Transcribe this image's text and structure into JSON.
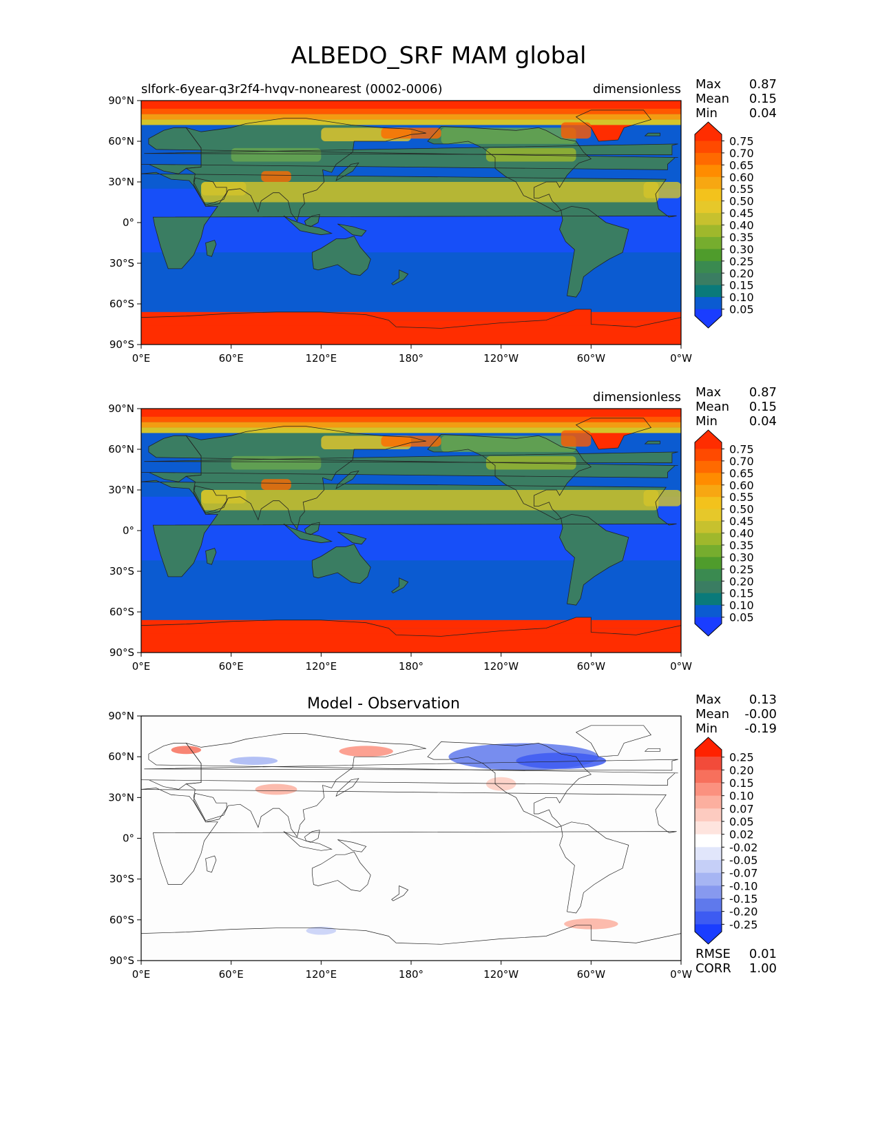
{
  "figure_title": "ALBEDO_SRF MAM global",
  "colors": {
    "land_low": "#3a7d62",
    "land_mid": "#6aa84f",
    "land_high": "#d4c42a",
    "ocean": "#0b5bd1",
    "ocean_light": "#1a4dff",
    "ice": "#ff2d00",
    "diff_zero": "#fdfdfd"
  },
  "chart_data": [
    {
      "type": "heatmap",
      "id": "panel1",
      "title_left": "slfork-6year-q3r2f4-hvqv-nonearest (0002-0006)",
      "title_center": "",
      "units": "dimensionless",
      "stats": [
        {
          "label": "Max",
          "value": "0.87"
        },
        {
          "label": "Mean",
          "value": "0.15"
        },
        {
          "label": "Min",
          "value": "0.04"
        }
      ],
      "extra_stats": [],
      "xticks": [
        "0°E",
        "60°E",
        "120°E",
        "180°",
        "120°W",
        "60°W",
        "0°W"
      ],
      "yticks": [
        "90°N",
        "60°N",
        "30°N",
        "0°",
        "30°S",
        "60°S",
        "90°S"
      ],
      "xlim": [
        0,
        360
      ],
      "ylim": [
        -90,
        90
      ],
      "colorbar": {
        "labels": [
          "0.75",
          "0.70",
          "0.65",
          "0.60",
          "0.55",
          "0.50",
          "0.45",
          "0.40",
          "0.35",
          "0.30",
          "0.25",
          "0.20",
          "0.15",
          "0.10",
          "0.05"
        ],
        "colors": [
          "#ff2d00",
          "#ff4a00",
          "#ff6a00",
          "#ff8c00",
          "#f7a712",
          "#f3c21c",
          "#e6c82a",
          "#c7c12e",
          "#9fb82c",
          "#76ad2e",
          "#4f9c2c",
          "#3a8a50",
          "#3a7d62",
          "#0a7a7a",
          "#0b5bd1",
          "#1a3dff"
        ]
      }
    },
    {
      "type": "heatmap",
      "id": "panel2",
      "title_left": "",
      "title_center": "",
      "units": "dimensionless",
      "stats": [
        {
          "label": "Max",
          "value": "0.87"
        },
        {
          "label": "Mean",
          "value": "0.15"
        },
        {
          "label": "Min",
          "value": "0.04"
        }
      ],
      "extra_stats": [],
      "xticks": [
        "0°E",
        "60°E",
        "120°E",
        "180°",
        "120°W",
        "60°W",
        "0°W"
      ],
      "yticks": [
        "90°N",
        "60°N",
        "30°N",
        "0°",
        "30°S",
        "60°S",
        "90°S"
      ],
      "xlim": [
        0,
        360
      ],
      "ylim": [
        -90,
        90
      ],
      "colorbar": {
        "labels": [
          "0.75",
          "0.70",
          "0.65",
          "0.60",
          "0.55",
          "0.50",
          "0.45",
          "0.40",
          "0.35",
          "0.30",
          "0.25",
          "0.20",
          "0.15",
          "0.10",
          "0.05"
        ],
        "colors": [
          "#ff2d00",
          "#ff4a00",
          "#ff6a00",
          "#ff8c00",
          "#f7a712",
          "#f3c21c",
          "#e6c82a",
          "#c7c12e",
          "#9fb82c",
          "#76ad2e",
          "#4f9c2c",
          "#3a8a50",
          "#3a7d62",
          "#0a7a7a",
          "#0b5bd1",
          "#1a3dff"
        ]
      }
    },
    {
      "type": "heatmap",
      "id": "panel3",
      "title_left": "",
      "title_center": "Model - Observation",
      "units": "",
      "stats": [
        {
          "label": "Max",
          "value": "0.13"
        },
        {
          "label": "Mean",
          "value": "-0.00"
        },
        {
          "label": "Min",
          "value": "-0.19"
        }
      ],
      "extra_stats": [
        {
          "label": "RMSE",
          "value": "0.01"
        },
        {
          "label": "CORR",
          "value": "1.00"
        }
      ],
      "xticks": [
        "0°E",
        "60°E",
        "120°E",
        "180°",
        "120°W",
        "60°W",
        "0°W"
      ],
      "yticks": [
        "90°N",
        "60°N",
        "30°N",
        "0°",
        "30°S",
        "60°S",
        "90°S"
      ],
      "xlim": [
        0,
        360
      ],
      "ylim": [
        -90,
        90
      ],
      "colorbar": {
        "labels": [
          "0.25",
          "0.20",
          "0.15",
          "0.10",
          "0.07",
          "0.05",
          "0.02",
          "-0.02",
          "-0.05",
          "-0.07",
          "-0.10",
          "-0.15",
          "-0.20",
          "-0.25"
        ],
        "colors": [
          "#ff2200",
          "#f24b3a",
          "#f7705c",
          "#fb917f",
          "#fcaf9f",
          "#fdcbc0",
          "#fee4de",
          "#ffffff",
          "#e1e6fb",
          "#c5cff7",
          "#a6b5f3",
          "#8799ef",
          "#5f79ec",
          "#3d5bf2",
          "#1a3dff"
        ]
      }
    }
  ]
}
